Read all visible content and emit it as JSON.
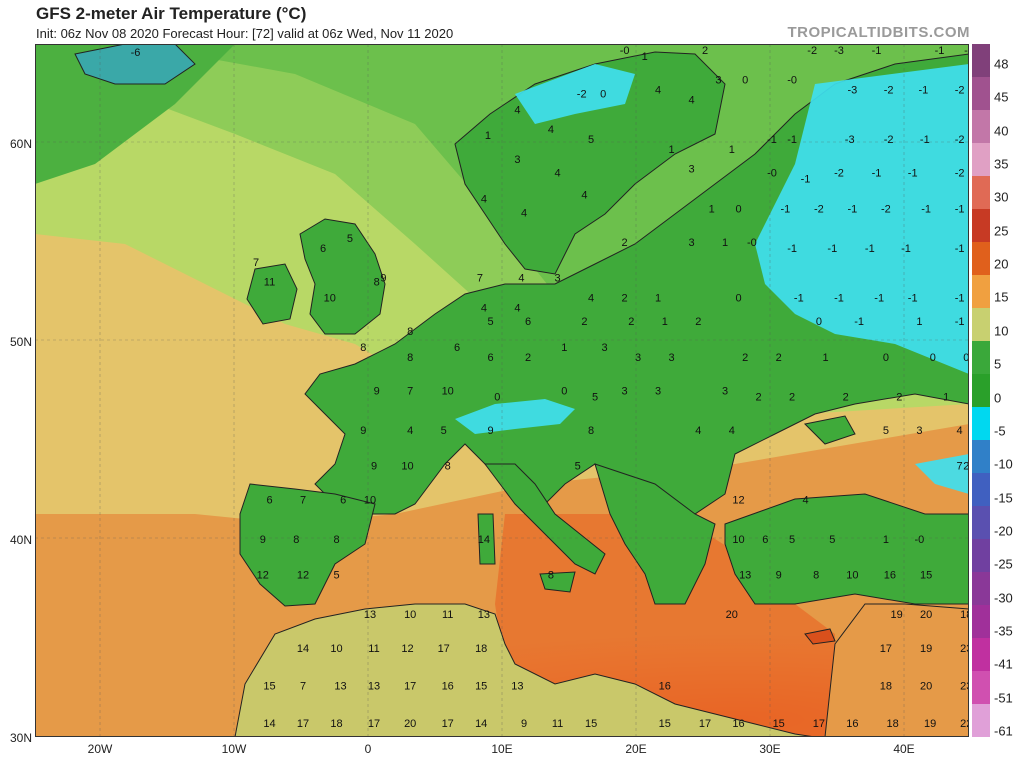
{
  "title": "GFS 2-meter Air Temperature (°C)",
  "subtitle": "Init: 06z Nov 08 2020   Forecast Hour: [72]   valid at 06z Wed, Nov 11 2020",
  "brand": "TROPICALTIDBITS.COM",
  "lat_labels": [
    "60N",
    "50N",
    "40N",
    "30N"
  ],
  "lon_labels": [
    "20W",
    "10W",
    "0",
    "10E",
    "20E",
    "30E",
    "40E"
  ],
  "colorbar": {
    "labels": [
      "48",
      "45",
      "40",
      "35",
      "30",
      "25",
      "20",
      "15",
      "10",
      "5",
      "0",
      "-5",
      "-10",
      "-15",
      "-20",
      "-25",
      "-30",
      "-35",
      "-41",
      "-51",
      "-61"
    ],
    "colors": [
      "#80407a",
      "#a0528f",
      "#c277a8",
      "#e0a0c4",
      "#e06a55",
      "#c73a24",
      "#e0601c",
      "#f0a040",
      "#c8d070",
      "#3aa83a",
      "#2aa02a",
      "#00d8f0",
      "#3080c8",
      "#4060c0",
      "#5a50b0",
      "#7040a0",
      "#8a3898",
      "#a0309a",
      "#c030a0",
      "#d050b0",
      "#e0a0d8"
    ]
  },
  "map": {
    "land_outline_color": "#222222",
    "cold_color": "#40e0f0",
    "points": [
      {
        "t": "-6",
        "lon": -17.5,
        "lat": 64.4
      },
      {
        "t": "-2",
        "lon": 15.8,
        "lat": 62.3
      },
      {
        "t": "0",
        "lon": 17.4,
        "lat": 62.3
      },
      {
        "t": "1",
        "lon": 20.5,
        "lat": 64.2
      },
      {
        "t": "-0",
        "lon": 19.0,
        "lat": 64.5
      },
      {
        "t": "2",
        "lon": 25.0,
        "lat": 64.5
      },
      {
        "t": "-2",
        "lon": 33.0,
        "lat": 64.5
      },
      {
        "t": "-1",
        "lon": 37.8,
        "lat": 64.5
      },
      {
        "t": "-1",
        "lon": 42.5,
        "lat": 64.5
      },
      {
        "t": "-1",
        "lon": 44.7,
        "lat": 64.5
      },
      {
        "t": "-3",
        "lon": 35.0,
        "lat": 64.5
      },
      {
        "t": "3",
        "lon": 26.0,
        "lat": 63.0
      },
      {
        "t": "0",
        "lon": 28.0,
        "lat": 63.0
      },
      {
        "t": "-0",
        "lon": 31.5,
        "lat": 63.0
      },
      {
        "t": "-3",
        "lon": 36.0,
        "lat": 62.5
      },
      {
        "t": "-2",
        "lon": 38.7,
        "lat": 62.5
      },
      {
        "t": "-1",
        "lon": 41.3,
        "lat": 62.5
      },
      {
        "t": "-2",
        "lon": 44.0,
        "lat": 62.5
      },
      {
        "t": "4",
        "lon": 21.5,
        "lat": 62.5
      },
      {
        "t": "4",
        "lon": 24.0,
        "lat": 62.0
      },
      {
        "t": "4",
        "lon": 11.0,
        "lat": 61.5
      },
      {
        "t": "4",
        "lon": 13.5,
        "lat": 60.5
      },
      {
        "t": "5",
        "lon": 16.5,
        "lat": 60.0
      },
      {
        "t": "1",
        "lon": 8.8,
        "lat": 60.2
      },
      {
        "t": "3",
        "lon": 11.0,
        "lat": 59.0
      },
      {
        "t": "4",
        "lon": 14.0,
        "lat": 58.3
      },
      {
        "t": "-1",
        "lon": 30.0,
        "lat": 60.0
      },
      {
        "t": "-1",
        "lon": 31.5,
        "lat": 60.0
      },
      {
        "t": "-3",
        "lon": 35.8,
        "lat": 60.0
      },
      {
        "t": "-2",
        "lon": 38.7,
        "lat": 60.0
      },
      {
        "t": "-1",
        "lon": 41.4,
        "lat": 60.0
      },
      {
        "t": "-2",
        "lon": 44.0,
        "lat": 60.0
      },
      {
        "t": "1",
        "lon": 22.5,
        "lat": 59.5
      },
      {
        "t": "1",
        "lon": 27.0,
        "lat": 59.5
      },
      {
        "t": "3",
        "lon": 24.0,
        "lat": 58.5
      },
      {
        "t": "-0",
        "lon": 30.0,
        "lat": 58.3
      },
      {
        "t": "-1",
        "lon": 32.5,
        "lat": 58.0
      },
      {
        "t": "-2",
        "lon": 35.0,
        "lat": 58.3
      },
      {
        "t": "-1",
        "lon": 37.8,
        "lat": 58.3
      },
      {
        "t": "-1",
        "lon": 40.5,
        "lat": 58.3
      },
      {
        "t": "-2",
        "lon": 44.0,
        "lat": 58.3
      },
      {
        "t": "4",
        "lon": 8.5,
        "lat": 57.0
      },
      {
        "t": "4",
        "lon": 11.5,
        "lat": 56.3
      },
      {
        "t": "4",
        "lon": 16.0,
        "lat": 57.2
      },
      {
        "t": "1",
        "lon": 25.5,
        "lat": 56.5
      },
      {
        "t": "0",
        "lon": 27.5,
        "lat": 56.5
      },
      {
        "t": "-1",
        "lon": 31.0,
        "lat": 56.5
      },
      {
        "t": "-2",
        "lon": 33.5,
        "lat": 56.5
      },
      {
        "t": "-1",
        "lon": 36.0,
        "lat": 56.5
      },
      {
        "t": "-2",
        "lon": 38.5,
        "lat": 56.5
      },
      {
        "t": "-1",
        "lon": 41.5,
        "lat": 56.5
      },
      {
        "t": "-1",
        "lon": 44.0,
        "lat": 56.5
      },
      {
        "t": "5",
        "lon": -1.5,
        "lat": 55.0
      },
      {
        "t": "6",
        "lon": -3.5,
        "lat": 54.5
      },
      {
        "t": "9",
        "lon": 1.0,
        "lat": 53.0
      },
      {
        "t": "10",
        "lon": -3.0,
        "lat": 52.0
      },
      {
        "t": "7",
        "lon": -8.5,
        "lat": 53.8
      },
      {
        "t": "11",
        "lon": -7.5,
        "lat": 52.8
      },
      {
        "t": "8",
        "lon": 0.5,
        "lat": 52.8
      },
      {
        "t": "7",
        "lon": 8.2,
        "lat": 53.0
      },
      {
        "t": "4",
        "lon": 11.3,
        "lat": 53.0
      },
      {
        "t": "3",
        "lon": 14.0,
        "lat": 53.0
      },
      {
        "t": "2",
        "lon": 19.0,
        "lat": 54.8
      },
      {
        "t": "3",
        "lon": 24.0,
        "lat": 54.8
      },
      {
        "t": "1",
        "lon": 26.5,
        "lat": 54.8
      },
      {
        "t": "-0",
        "lon": 28.5,
        "lat": 54.8
      },
      {
        "t": "-1",
        "lon": 31.5,
        "lat": 54.5
      },
      {
        "t": "-1",
        "lon": 34.5,
        "lat": 54.5
      },
      {
        "t": "-1",
        "lon": 37.3,
        "lat": 54.5
      },
      {
        "t": "-1",
        "lon": 40.0,
        "lat": 54.5
      },
      {
        "t": "-1",
        "lon": 44.0,
        "lat": 54.5
      },
      {
        "t": "4",
        "lon": 8.5,
        "lat": 51.5
      },
      {
        "t": "4",
        "lon": 11.0,
        "lat": 51.5
      },
      {
        "t": "4",
        "lon": 16.5,
        "lat": 52.0
      },
      {
        "t": "2",
        "lon": 19.0,
        "lat": 52.0
      },
      {
        "t": "1",
        "lon": 21.5,
        "lat": 52.0
      },
      {
        "t": "0",
        "lon": 27.5,
        "lat": 52.0
      },
      {
        "t": "-1",
        "lon": 32.0,
        "lat": 52.0
      },
      {
        "t": "-1",
        "lon": 35.0,
        "lat": 52.0
      },
      {
        "t": "-1",
        "lon": 38.0,
        "lat": 52.0
      },
      {
        "t": "-1",
        "lon": 40.5,
        "lat": 52.0
      },
      {
        "t": "-1",
        "lon": 44.0,
        "lat": 52.0
      },
      {
        "t": "5",
        "lon": 9.0,
        "lat": 50.8
      },
      {
        "t": "6",
        "lon": 11.8,
        "lat": 50.8
      },
      {
        "t": "2",
        "lon": 16.0,
        "lat": 50.8
      },
      {
        "t": "2",
        "lon": 19.5,
        "lat": 50.8
      },
      {
        "t": "1",
        "lon": 22.0,
        "lat": 50.8
      },
      {
        "t": "2",
        "lon": 24.5,
        "lat": 50.8
      },
      {
        "t": "0",
        "lon": 33.5,
        "lat": 50.8
      },
      {
        "t": "-1",
        "lon": 36.5,
        "lat": 50.8
      },
      {
        "t": "1",
        "lon": 41.0,
        "lat": 50.8
      },
      {
        "t": "-1",
        "lon": 44.0,
        "lat": 50.8
      },
      {
        "t": "8",
        "lon": 3.0,
        "lat": 50.3
      },
      {
        "t": "8",
        "lon": -0.5,
        "lat": 49.5
      },
      {
        "t": "8",
        "lon": 3.0,
        "lat": 49.0
      },
      {
        "t": "6",
        "lon": 6.5,
        "lat": 49.5
      },
      {
        "t": "6",
        "lon": 9.0,
        "lat": 49.0
      },
      {
        "t": "2",
        "lon": 11.8,
        "lat": 49.0
      },
      {
        "t": "1",
        "lon": 14.5,
        "lat": 49.5
      },
      {
        "t": "3",
        "lon": 17.5,
        "lat": 49.5
      },
      {
        "t": "3",
        "lon": 20.0,
        "lat": 49.0
      },
      {
        "t": "3",
        "lon": 22.5,
        "lat": 49.0
      },
      {
        "t": "2",
        "lon": 28.0,
        "lat": 49.0
      },
      {
        "t": "2",
        "lon": 30.5,
        "lat": 49.0
      },
      {
        "t": "1",
        "lon": 34.0,
        "lat": 49.0
      },
      {
        "t": "0",
        "lon": 38.5,
        "lat": 49.0
      },
      {
        "t": "0",
        "lon": 42.0,
        "lat": 49.0
      },
      {
        "t": "0",
        "lon": 44.5,
        "lat": 49.0
      },
      {
        "t": "9",
        "lon": 0.5,
        "lat": 47.3
      },
      {
        "t": "7",
        "lon": 3.0,
        "lat": 47.3
      },
      {
        "t": "10",
        "lon": 5.8,
        "lat": 47.3
      },
      {
        "t": "0",
        "lon": 9.5,
        "lat": 47.0
      },
      {
        "t": "0",
        "lon": 14.5,
        "lat": 47.3
      },
      {
        "t": "5",
        "lon": 16.8,
        "lat": 47.0
      },
      {
        "t": "3",
        "lon": 19.0,
        "lat": 47.3
      },
      {
        "t": "3",
        "lon": 21.5,
        "lat": 47.3
      },
      {
        "t": "3",
        "lon": 26.5,
        "lat": 47.3
      },
      {
        "t": "2",
        "lon": 29.0,
        "lat": 47.0
      },
      {
        "t": "2",
        "lon": 31.5,
        "lat": 47.0
      },
      {
        "t": "2",
        "lon": 35.5,
        "lat": 47.0
      },
      {
        "t": "2",
        "lon": 39.5,
        "lat": 47.0
      },
      {
        "t": "1",
        "lon": 43.0,
        "lat": 47.0
      },
      {
        "t": "9",
        "lon": -0.5,
        "lat": 45.3
      },
      {
        "t": "4",
        "lon": 3.0,
        "lat": 45.3
      },
      {
        "t": "5",
        "lon": 5.5,
        "lat": 45.3
      },
      {
        "t": "9",
        "lon": 9.0,
        "lat": 45.3
      },
      {
        "t": "8",
        "lon": 16.5,
        "lat": 45.3
      },
      {
        "t": "4",
        "lon": 24.5,
        "lat": 45.3
      },
      {
        "t": "4",
        "lon": 27.0,
        "lat": 45.3
      },
      {
        "t": "5",
        "lon": 38.5,
        "lat": 45.3
      },
      {
        "t": "3",
        "lon": 41.0,
        "lat": 45.3
      },
      {
        "t": "4",
        "lon": 44.0,
        "lat": 45.3
      },
      {
        "t": "9",
        "lon": 0.3,
        "lat": 43.5
      },
      {
        "t": "10",
        "lon": 2.8,
        "lat": 43.5
      },
      {
        "t": "8",
        "lon": 5.8,
        "lat": 43.5
      },
      {
        "t": "5",
        "lon": 15.5,
        "lat": 43.5
      },
      {
        "t": "2",
        "lon": 44.5,
        "lat": 43.5
      },
      {
        "t": "7",
        "lon": 44.0,
        "lat": 43.5
      },
      {
        "t": "6",
        "lon": -7.5,
        "lat": 41.8
      },
      {
        "t": "7",
        "lon": -5.0,
        "lat": 41.8
      },
      {
        "t": "6",
        "lon": -2.0,
        "lat": 41.8
      },
      {
        "t": "10",
        "lon": 0.0,
        "lat": 41.8
      },
      {
        "t": "12",
        "lon": 27.5,
        "lat": 41.8
      },
      {
        "t": "4",
        "lon": 32.5,
        "lat": 41.8
      },
      {
        "t": "9",
        "lon": -8.0,
        "lat": 39.8
      },
      {
        "t": "8",
        "lon": -5.5,
        "lat": 39.8
      },
      {
        "t": "8",
        "lon": -2.5,
        "lat": 39.8
      },
      {
        "t": "14",
        "lon": 8.5,
        "lat": 39.8
      },
      {
        "t": "10",
        "lon": 27.5,
        "lat": 39.8
      },
      {
        "t": "6",
        "lon": 29.5,
        "lat": 39.8
      },
      {
        "t": "5",
        "lon": 31.5,
        "lat": 39.8
      },
      {
        "t": "5",
        "lon": 34.5,
        "lat": 39.8
      },
      {
        "t": "1",
        "lon": 38.5,
        "lat": 39.8
      },
      {
        "t": "-0",
        "lon": 41.0,
        "lat": 39.8
      },
      {
        "t": "12",
        "lon": -8.0,
        "lat": 38.0
      },
      {
        "t": "12",
        "lon": -5.0,
        "lat": 38.0
      },
      {
        "t": "5",
        "lon": -2.5,
        "lat": 38.0
      },
      {
        "t": "8",
        "lon": 13.5,
        "lat": 38.0
      },
      {
        "t": "13",
        "lon": 28.0,
        "lat": 38.0
      },
      {
        "t": "9",
        "lon": 30.5,
        "lat": 38.0
      },
      {
        "t": "8",
        "lon": 33.3,
        "lat": 38.0
      },
      {
        "t": "10",
        "lon": 36.0,
        "lat": 38.0
      },
      {
        "t": "16",
        "lon": 38.8,
        "lat": 38.0
      },
      {
        "t": "15",
        "lon": 41.5,
        "lat": 38.0
      },
      {
        "t": "13",
        "lon": 0.0,
        "lat": 36.0
      },
      {
        "t": "10",
        "lon": 3.0,
        "lat": 36.0
      },
      {
        "t": "11",
        "lon": 5.8,
        "lat": 36.0
      },
      {
        "t": "13",
        "lon": 8.5,
        "lat": 36.0
      },
      {
        "t": "20",
        "lon": 27.0,
        "lat": 36.0
      },
      {
        "t": "19",
        "lon": 39.3,
        "lat": 36.0
      },
      {
        "t": "20",
        "lon": 41.5,
        "lat": 36.0
      },
      {
        "t": "18",
        "lon": 44.5,
        "lat": 36.0
      },
      {
        "t": "14",
        "lon": -5.0,
        "lat": 34.3
      },
      {
        "t": "10",
        "lon": -2.5,
        "lat": 34.3
      },
      {
        "t": "11",
        "lon": 0.3,
        "lat": 34.3
      },
      {
        "t": "12",
        "lon": 2.8,
        "lat": 34.3
      },
      {
        "t": "17",
        "lon": 5.5,
        "lat": 34.3
      },
      {
        "t": "18",
        "lon": 8.3,
        "lat": 34.3
      },
      {
        "t": "17",
        "lon": 38.5,
        "lat": 34.3
      },
      {
        "t": "19",
        "lon": 41.5,
        "lat": 34.3
      },
      {
        "t": "23",
        "lon": 44.5,
        "lat": 34.3
      },
      {
        "t": "15",
        "lon": -7.5,
        "lat": 32.4
      },
      {
        "t": "7",
        "lon": -5.0,
        "lat": 32.4
      },
      {
        "t": "13",
        "lon": -2.2,
        "lat": 32.4
      },
      {
        "t": "13",
        "lon": 0.3,
        "lat": 32.4
      },
      {
        "t": "17",
        "lon": 3.0,
        "lat": 32.4
      },
      {
        "t": "16",
        "lon": 5.8,
        "lat": 32.4
      },
      {
        "t": "15",
        "lon": 8.3,
        "lat": 32.4
      },
      {
        "t": "13",
        "lon": 11.0,
        "lat": 32.4
      },
      {
        "t": "16",
        "lon": 22.0,
        "lat": 32.4
      },
      {
        "t": "18",
        "lon": 38.5,
        "lat": 32.4
      },
      {
        "t": "20",
        "lon": 41.5,
        "lat": 32.4
      },
      {
        "t": "23",
        "lon": 44.5,
        "lat": 32.4
      },
      {
        "t": "14",
        "lon": -7.5,
        "lat": 30.5
      },
      {
        "t": "17",
        "lon": -5.0,
        "lat": 30.5
      },
      {
        "t": "18",
        "lon": -2.5,
        "lat": 30.5
      },
      {
        "t": "17",
        "lon": 0.3,
        "lat": 30.5
      },
      {
        "t": "20",
        "lon": 3.0,
        "lat": 30.5
      },
      {
        "t": "17",
        "lon": 5.8,
        "lat": 30.5
      },
      {
        "t": "14",
        "lon": 8.3,
        "lat": 30.5
      },
      {
        "t": "9",
        "lon": 11.5,
        "lat": 30.5
      },
      {
        "t": "11",
        "lon": 14.0,
        "lat": 30.5
      },
      {
        "t": "15",
        "lon": 16.5,
        "lat": 30.5
      },
      {
        "t": "15",
        "lon": 22.0,
        "lat": 30.5
      },
      {
        "t": "17",
        "lon": 25.0,
        "lat": 30.5
      },
      {
        "t": "16",
        "lon": 27.5,
        "lat": 30.5
      },
      {
        "t": "15",
        "lon": 30.5,
        "lat": 30.5
      },
      {
        "t": "17",
        "lon": 33.5,
        "lat": 30.5
      },
      {
        "t": "16",
        "lon": 36.0,
        "lat": 30.5
      },
      {
        "t": "18",
        "lon": 39.0,
        "lat": 30.5
      },
      {
        "t": "19",
        "lon": 41.8,
        "lat": 30.5
      },
      {
        "t": "22",
        "lon": 44.5,
        "lat": 30.5
      }
    ]
  }
}
